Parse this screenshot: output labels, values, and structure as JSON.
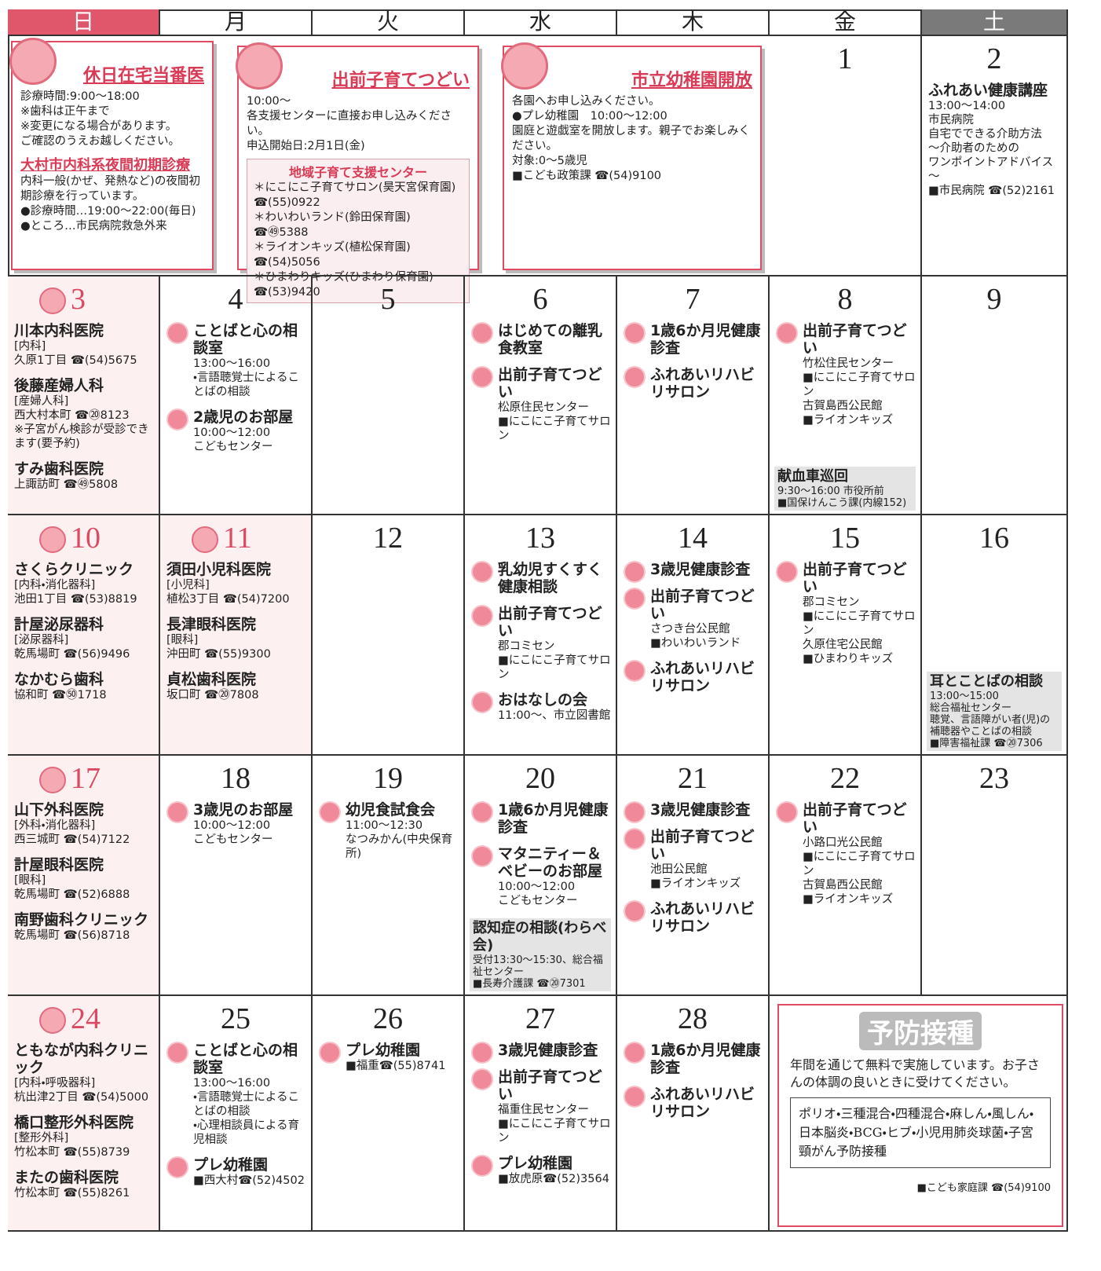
{
  "header": {
    "days": [
      "日",
      "月",
      "火",
      "水",
      "木",
      "金",
      "土"
    ]
  },
  "notices": [
    {
      "title": "休日在宅当番医",
      "lines": [
        "診療時間:9:00～18:00",
        "※歯科は正午まで",
        "※変更になる場合があります。",
        "ご確認のうえお越しください。"
      ],
      "section": {
        "title": "大村市内科系夜間初期診療",
        "lines": [
          "内科一般(かぜ、発熱など)の夜間初期診療を行っています。",
          "●診療時間…19:00～22:00(毎日)",
          "●ところ…市民病院救急外来"
        ]
      }
    },
    {
      "title": "出前子育てつどい",
      "lines": [
        "10:00～",
        "各支援センターに直接お申し込みください。",
        "申込開始日:2月1日(金)"
      ],
      "section": {
        "title": "地域子育て支援センター",
        "lines": [
          "＊にこにこ子育てサロン(昊天宮保育園)",
          "☎(55)0922",
          "＊わいわいランド(鈴田保育園)",
          "☎㊾5388",
          "＊ライオンキッズ(植松保育園)",
          "☎(54)5056",
          "＊ひまわりキッズ(ひまわり保育園)",
          "☎(53)9420"
        ]
      }
    },
    {
      "title": "市立幼稚園開放",
      "lines": [
        "各園へお申し込みください。",
        "●プレ幼稚園　10:00～12:00",
        "園庭と遊戯室を開放します。親子でお楽しみください。",
        "対象:0～5歳児",
        "■こども政策課 ☎(54)9100"
      ]
    }
  ],
  "weeks": [
    {
      "days": [
        {
          "date": "1",
          "entries": []
        },
        {
          "date": "2",
          "entries": [
            {
              "title": "ふれあい健康講座",
              "lines": [
                "13:00～14:00",
                "市民病院",
                "自宅でできる介助方法",
                "～介助者のための",
                "ワンポイントアドバイス～",
                "■市民病院 ☎(52)2161"
              ]
            }
          ]
        }
      ]
    },
    {
      "days": [
        {
          "date": "3",
          "entries": [
            {
              "title": "川本内科医院",
              "lines": [
                "[内科]",
                "久原1丁目 ☎(54)5675"
              ]
            },
            {
              "title": "後藤産婦人科",
              "lines": [
                "[産婦人科]",
                "西大村本町 ☎⑳8123",
                "※子宮がん検診が受診できます(要予約)"
              ]
            },
            {
              "title": "すみ歯科医院",
              "lines": [
                "上諏訪町 ☎㊾5808"
              ]
            }
          ]
        },
        {
          "date": "4",
          "entries": [
            {
              "title": "ことばと心の相談室",
              "lines": [
                "13:00～16:00",
                "・言語聴覚士によることばの相談"
              ]
            },
            {
              "title": "2歳児のお部屋",
              "lines": [
                "10:00～12:00",
                "こどもセンター"
              ]
            }
          ]
        },
        {
          "date": "5",
          "entries": []
        },
        {
          "date": "6",
          "entries": [
            {
              "title": "はじめての離乳食教室",
              "lines": []
            },
            {
              "title": "出前子育てつどい",
              "lines": [
                "松原住民センター",
                "■にこにこ子育てサロン"
              ]
            }
          ]
        },
        {
          "date": "7",
          "entries": [
            {
              "title": "1歳6か月児健康診査",
              "lines": []
            },
            {
              "title": "ふれあいリハビリサロン",
              "lines": []
            }
          ]
        },
        {
          "date": "8",
          "entries": [
            {
              "title": "出前子育てつどい",
              "lines": [
                "竹松住民センター",
                "■にこにこ子育てサロン",
                "古賀島西公民館",
                "■ライオンキッズ"
              ]
            }
          ],
          "footer": {
            "title": "献血車巡回",
            "lines": [
              "9:30～16:00 市役所前",
              "■国保けんこう課(内線152)"
            ]
          }
        },
        {
          "date": "9",
          "entries": []
        }
      ]
    },
    {
      "days": [
        {
          "date": "10",
          "entries": [
            {
              "title": "さくらクリニック",
              "lines": [
                "[内科・消化器科]",
                "池田1丁目 ☎(53)8819"
              ]
            },
            {
              "title": "計屋泌尿器科",
              "lines": [
                "[泌尿器科]",
                "乾馬場町 ☎(56)9496"
              ]
            },
            {
              "title": "なかむら歯科",
              "lines": [
                "協和町 ☎㊿1718"
              ]
            }
          ]
        },
        {
          "date": "11",
          "entries": [
            {
              "title": "須田小児科医院",
              "lines": [
                "[小児科]",
                "植松3丁目 ☎(54)7200"
              ]
            },
            {
              "title": "長津眼科医院",
              "lines": [
                "[眼科]",
                "沖田町 ☎(55)9300"
              ]
            },
            {
              "title": "貞松歯科医院",
              "lines": [
                "坂口町 ☎⑳7808"
              ]
            }
          ]
        },
        {
          "date": "12",
          "entries": []
        },
        {
          "date": "13",
          "entries": [
            {
              "title": "乳幼児すくすく健康相談",
              "lines": []
            },
            {
              "title": "出前子育てつどい",
              "lines": [
                "郡コミセン",
                "■にこにこ子育てサロン"
              ]
            },
            {
              "title": "おはなしの会",
              "lines": [
                "11:00～、市立図書館"
              ]
            }
          ]
        },
        {
          "date": "14",
          "entries": [
            {
              "title": "3歳児健康診査",
              "lines": []
            },
            {
              "title": "出前子育てつどい",
              "lines": [
                "さつき台公民館",
                "■わいわいランド"
              ]
            },
            {
              "title": "ふれあいリハビリサロン",
              "lines": []
            }
          ]
        },
        {
          "date": "15",
          "entries": [
            {
              "title": "出前子育てつどい",
              "lines": [
                "郡コミセン",
                "■にこにこ子育てサロン",
                "久原住宅公民館",
                "■ひまわりキッズ"
              ]
            }
          ]
        },
        {
          "date": "16",
          "entries": [],
          "footer": {
            "title": "耳とことばの相談",
            "lines": [
              "13:00～15:00",
              "総合福祉センター",
              "聴覚、言語障がい者(児)の補聴器やことばの相談",
              "■障害福祉課 ☎⑳7306"
            ]
          }
        }
      ]
    },
    {
      "days": [
        {
          "date": "17",
          "entries": [
            {
              "title": "山下外科医院",
              "lines": [
                "[外科・消化器科]",
                "西三城町 ☎(54)7122"
              ]
            },
            {
              "title": "計屋眼科医院",
              "lines": [
                "[眼科]",
                "乾馬場町 ☎(52)6888"
              ]
            },
            {
              "title": "南野歯科クリニック",
              "lines": [
                "乾馬場町 ☎(56)8718"
              ]
            }
          ]
        },
        {
          "date": "18",
          "entries": [
            {
              "title": "3歳児のお部屋",
              "lines": [
                "10:00～12:00",
                "こどもセンター"
              ]
            }
          ]
        },
        {
          "date": "19",
          "entries": [
            {
              "title": "幼児食試食会",
              "lines": [
                "11:00～12:30",
                "なつみかん(中央保育所)"
              ]
            }
          ]
        },
        {
          "date": "20",
          "entries": [
            {
              "title": "1歳6か月児健康診査",
              "lines": []
            },
            {
              "title": "マタニティー＆ベビーのお部屋",
              "lines": [
                "10:00～12:00",
                "こどもセンター"
              ]
            }
          ],
          "footer": {
            "title": "認知症の相談(わらべ会)",
            "lines": [
              "受付13:30～15:30、総合福祉センター",
              "■長寿介護課 ☎⑳7301"
            ]
          }
        },
        {
          "date": "21",
          "entries": [
            {
              "title": "3歳児健康診査",
              "lines": []
            },
            {
              "title": "出前子育てつどい",
              "lines": [
                "池田公民館",
                "■ライオンキッズ"
              ]
            },
            {
              "title": "ふれあいリハビリサロン",
              "lines": []
            }
          ]
        },
        {
          "date": "22",
          "entries": [
            {
              "title": "出前子育てつどい",
              "lines": [
                "小路口光公民館",
                "■にこにこ子育てサロン",
                "古賀島西公民館",
                "■ライオンキッズ"
              ]
            }
          ]
        },
        {
          "date": "23",
          "entries": []
        }
      ]
    },
    {
      "days": [
        {
          "date": "24",
          "entries": [
            {
              "title": "ともなが内科クリニック",
              "lines": [
                "[内科・呼吸器科]",
                "杭出津2丁目 ☎(54)5000"
              ]
            },
            {
              "title": "橋口整形外科医院",
              "lines": [
                "[整形外科]",
                "竹松本町 ☎(55)8739"
              ]
            },
            {
              "title": "またの歯科医院",
              "lines": [
                "竹松本町 ☎(55)8261"
              ]
            }
          ]
        },
        {
          "date": "25",
          "entries": [
            {
              "title": "ことばと心の相談室",
              "lines": [
                "13:00～16:00",
                "・言語聴覚士によることばの相談",
                "・心理相談員による育児相談"
              ]
            },
            {
              "title": "プレ幼稚園",
              "lines": [
                "■西大村☎(52)4502"
              ]
            }
          ]
        },
        {
          "date": "26",
          "entries": [
            {
              "title": "プレ幼稚園",
              "lines": [
                "■福重☎(55)8741"
              ]
            }
          ]
        },
        {
          "date": "27",
          "entries": [
            {
              "title": "3歳児健康診査",
              "lines": []
            },
            {
              "title": "出前子育てつどい",
              "lines": [
                "福重住民センター",
                "■にこにこ子育てサロン"
              ]
            },
            {
              "title": "プレ幼稚園",
              "lines": [
                "■放虎原☎(52)3564"
              ]
            }
          ]
        },
        {
          "date": "28",
          "entries": [
            {
              "title": "1歳6か月児健康診査",
              "lines": []
            },
            {
              "title": "ふれあいリハビリサロン",
              "lines": []
            }
          ]
        }
      ]
    }
  ],
  "vaccination": {
    "title": "予防接種",
    "text": "年間を通じて無料で実施しています。お子さんの体調の良いときに受けてください。",
    "list": "ポリオ・三種混合・四種混合・麻しん・風しん・日本脳炎・BCG・ヒブ・小児用肺炎球菌・子宮頸がん予防接種",
    "contact": "■こども家庭課 ☎(54)9100"
  }
}
